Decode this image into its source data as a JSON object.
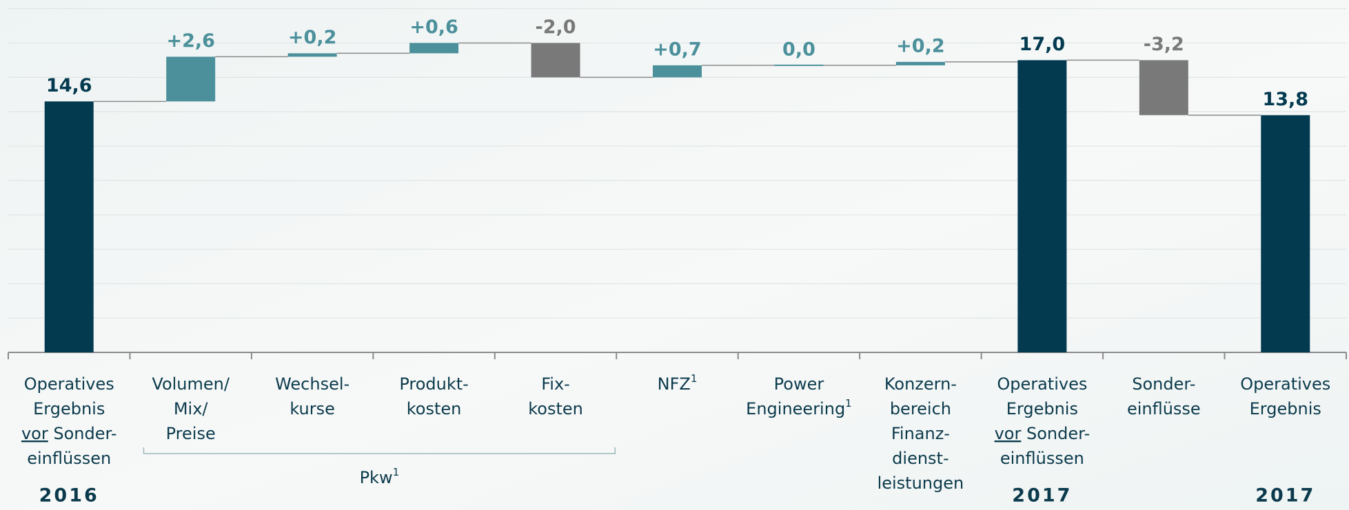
{
  "chart_data": {
    "type": "waterfall",
    "categories": [
      {
        "lines": [
          "Operatives",
          "Ergebnis",
          [
            "vor",
            " Sonder-"
          ],
          "einflüssen"
        ]
      },
      {
        "lines": [
          "Volumen/",
          "Mix/",
          "Preise"
        ]
      },
      {
        "lines": [
          "Wechsel-",
          "kurse"
        ]
      },
      {
        "lines": [
          "Produkt-",
          "kosten"
        ]
      },
      {
        "lines": [
          "Fix-",
          "kosten"
        ]
      },
      {
        "lines": [
          "NFZ"
        ],
        "note": "1"
      },
      {
        "lines": [
          "Power",
          "Engineering"
        ],
        "note": "1"
      },
      {
        "lines": [
          "Konzern-",
          "bereich",
          "Finanz-",
          "dienst-",
          "leistungen"
        ]
      },
      {
        "lines": [
          "Operatives",
          "Ergebnis",
          [
            "vor",
            " Sonder-"
          ],
          "einflüssen"
        ]
      },
      {
        "lines": [
          "Sonder-",
          "einflüsse"
        ]
      },
      {
        "lines": [
          "Operatives",
          "Ergebnis"
        ]
      }
    ],
    "kinds": [
      "total",
      "delta",
      "delta",
      "delta",
      "delta",
      "delta",
      "delta",
      "delta",
      "total",
      "delta",
      "total"
    ],
    "values": [
      14.6,
      2.6,
      0.2,
      0.6,
      -2.0,
      0.7,
      0.0,
      0.2,
      17.0,
      -3.2,
      13.8
    ],
    "value_labels": [
      "14,6",
      "+2,6",
      "+0,2",
      "+0,6",
      "-2,0",
      "+0,7",
      "0,0",
      "+0,2",
      "17,0",
      "-3,2",
      "13,8"
    ],
    "colors": {
      "total": "#033a4f",
      "positive": "#4b909b",
      "negative": "#797979"
    },
    "years": [
      {
        "index": 0,
        "label": "2016"
      },
      {
        "index": 8,
        "label": "2017"
      },
      {
        "index": 10,
        "label": "2017"
      }
    ],
    "group": {
      "label": "Pkw",
      "note": "1",
      "from": 1,
      "to": 4
    },
    "ylim": [
      0,
      20.5
    ],
    "yticks": [
      0,
      2,
      4,
      6,
      8,
      10,
      12,
      14,
      16,
      18,
      20
    ],
    "grid": true
  }
}
